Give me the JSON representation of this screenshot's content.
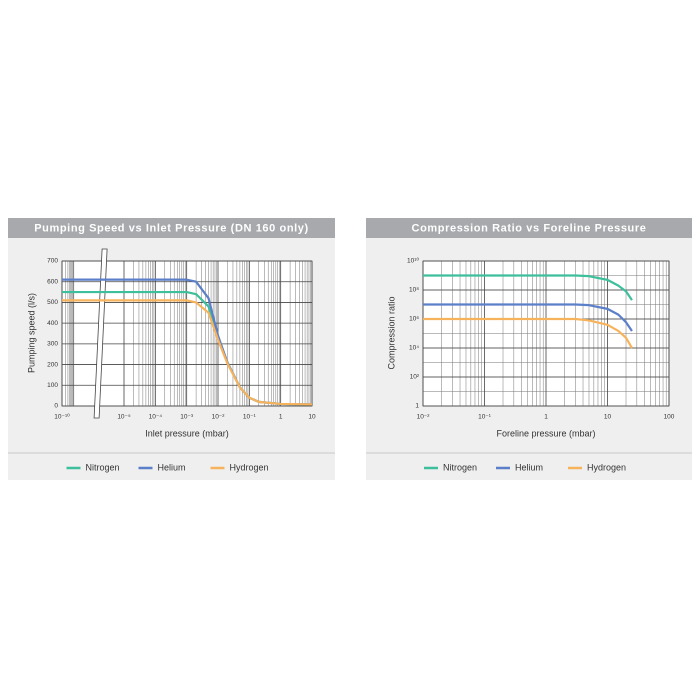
{
  "chart_data": [
    {
      "type": "line",
      "title": "Pumping Speed vs Inlet Pressure (DN 160 only)",
      "x_label": "Inlet pressure (mbar)",
      "y_label": "Pumping speed (l/s)",
      "xscale": "log",
      "axis_break": true,
      "xlim": [
        1e-10,
        10
      ],
      "xticks": [
        {
          "value": 1e-10,
          "label": "10⁻¹⁰"
        },
        {
          "value": 1e-05,
          "label": "10⁻⁵"
        },
        {
          "value": 0.0001,
          "label": "10⁻⁴"
        },
        {
          "value": 0.001,
          "label": "10⁻³"
        },
        {
          "value": 0.01,
          "label": "10⁻²"
        },
        {
          "value": 0.1,
          "label": "10⁻¹"
        },
        1,
        10
      ],
      "ylim": [
        0,
        700
      ],
      "yticks": [
        0,
        100,
        200,
        300,
        400,
        500,
        600,
        700
      ],
      "grid": true,
      "legend": "bottom",
      "x": [
        1e-10,
        1e-05,
        0.0001,
        0.001,
        0.002,
        0.005,
        0.01,
        0.02,
        0.05,
        0.1,
        0.2,
        1,
        10
      ],
      "series": [
        {
          "name": "Nitrogen",
          "color": "#3dbf9c",
          "values": [
            550,
            550,
            550,
            550,
            540,
            480,
            330,
            210,
            90,
            40,
            20,
            10,
            8
          ]
        },
        {
          "name": "Helium",
          "color": "#5b7fc8",
          "values": [
            610,
            610,
            610,
            610,
            600,
            520,
            340,
            210,
            90,
            40,
            20,
            10,
            8
          ]
        },
        {
          "name": "Hydrogen",
          "color": "#f7b35b",
          "values": [
            510,
            510,
            510,
            510,
            500,
            450,
            320,
            205,
            90,
            40,
            20,
            10,
            8
          ]
        }
      ]
    },
    {
      "type": "line",
      "title": "Compression Ratio vs Foreline Pressure",
      "x_label": "Foreline pressure (mbar)",
      "y_label": "Compression ratio",
      "xscale": "log",
      "yscale": "log",
      "xlim": [
        0.01,
        100
      ],
      "xticks": [
        {
          "value": 0.01,
          "label": "10⁻²"
        },
        {
          "value": 0.1,
          "label": "10⁻¹"
        },
        1,
        10,
        100
      ],
      "ylim": [
        1,
        10000000000
      ],
      "yticks": [
        1,
        {
          "value": 100,
          "label": "10²"
        },
        {
          "value": 10000,
          "label": "10⁴"
        },
        {
          "value": 1000000,
          "label": "10⁶"
        },
        {
          "value": 100000000,
          "label": "10⁸"
        },
        {
          "value": 10000000000,
          "label": "10¹⁰"
        }
      ],
      "grid": true,
      "legend": "bottom",
      "x": [
        0.01,
        0.1,
        1,
        3,
        5,
        10,
        15,
        20,
        25
      ],
      "series": [
        {
          "name": "Nitrogen",
          "color": "#3dbf9c",
          "values": [
            1000000000,
            1000000000,
            1000000000,
            1000000000,
            900000000,
            500000000,
            200000000,
            80000000,
            20000000
          ]
        },
        {
          "name": "Helium",
          "color": "#5b7fc8",
          "values": [
            10000000,
            10000000,
            10000000,
            10000000,
            9000000,
            5000000,
            2000000,
            600000,
            150000
          ]
        },
        {
          "name": "Hydrogen",
          "color": "#f7b35b",
          "values": [
            1000000,
            1000000,
            1000000,
            1000000,
            800000,
            400000,
            150000,
            50000,
            10000
          ]
        }
      ]
    }
  ]
}
